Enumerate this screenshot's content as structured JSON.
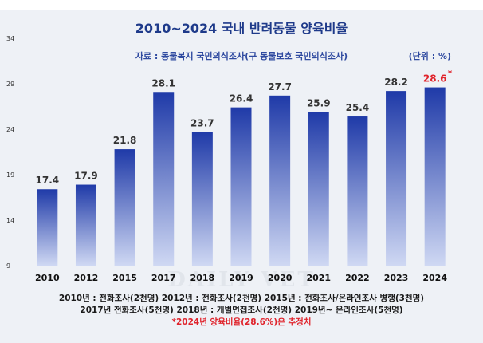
{
  "chart_data": {
    "type": "bar",
    "title": "2010~2024 국내 반려동물 양육비율",
    "source": "자료 : 동물복지 국민의식조사(구 동물보호 국민의식조사)",
    "unit": "(단위 : %)",
    "categories": [
      "2010",
      "2012",
      "2015",
      "2017",
      "2018",
      "2019",
      "2020",
      "2021",
      "2022",
      "2023",
      "2024"
    ],
    "values": [
      17.4,
      17.9,
      21.8,
      28.1,
      23.7,
      26.4,
      27.7,
      25.9,
      25.4,
      28.2,
      28.6
    ],
    "value_labels": [
      "17.4",
      "17.9",
      "21.8",
      "28.1",
      "23.7",
      "26.4",
      "27.7",
      "25.9",
      "25.4",
      "28.2",
      "28.6"
    ],
    "highlight": {
      "index": 10,
      "mark": "*",
      "color": "#e0242c"
    },
    "ylim": [
      9,
      34
    ],
    "yticks": [
      9,
      14,
      19,
      24,
      29,
      34
    ],
    "bar_color_top": "#1f3aa8",
    "bar_color_bottom": "#cfd8f3",
    "grid": false,
    "legend": "none"
  },
  "watermark": "DAILY VET",
  "notes": [
    "2010년 : 전화조사(2천명) 2012년 : 전화조사(2천명) 2015년 : 전화조사/온라인조사 병행(3천명)",
    "2017년 전화조사(5천명) 2018년 : 개별면접조사(2천명) 2019년~ 온라인조사(5천명)",
    "*2024년 양육비율(28.6%)은 추정치"
  ]
}
